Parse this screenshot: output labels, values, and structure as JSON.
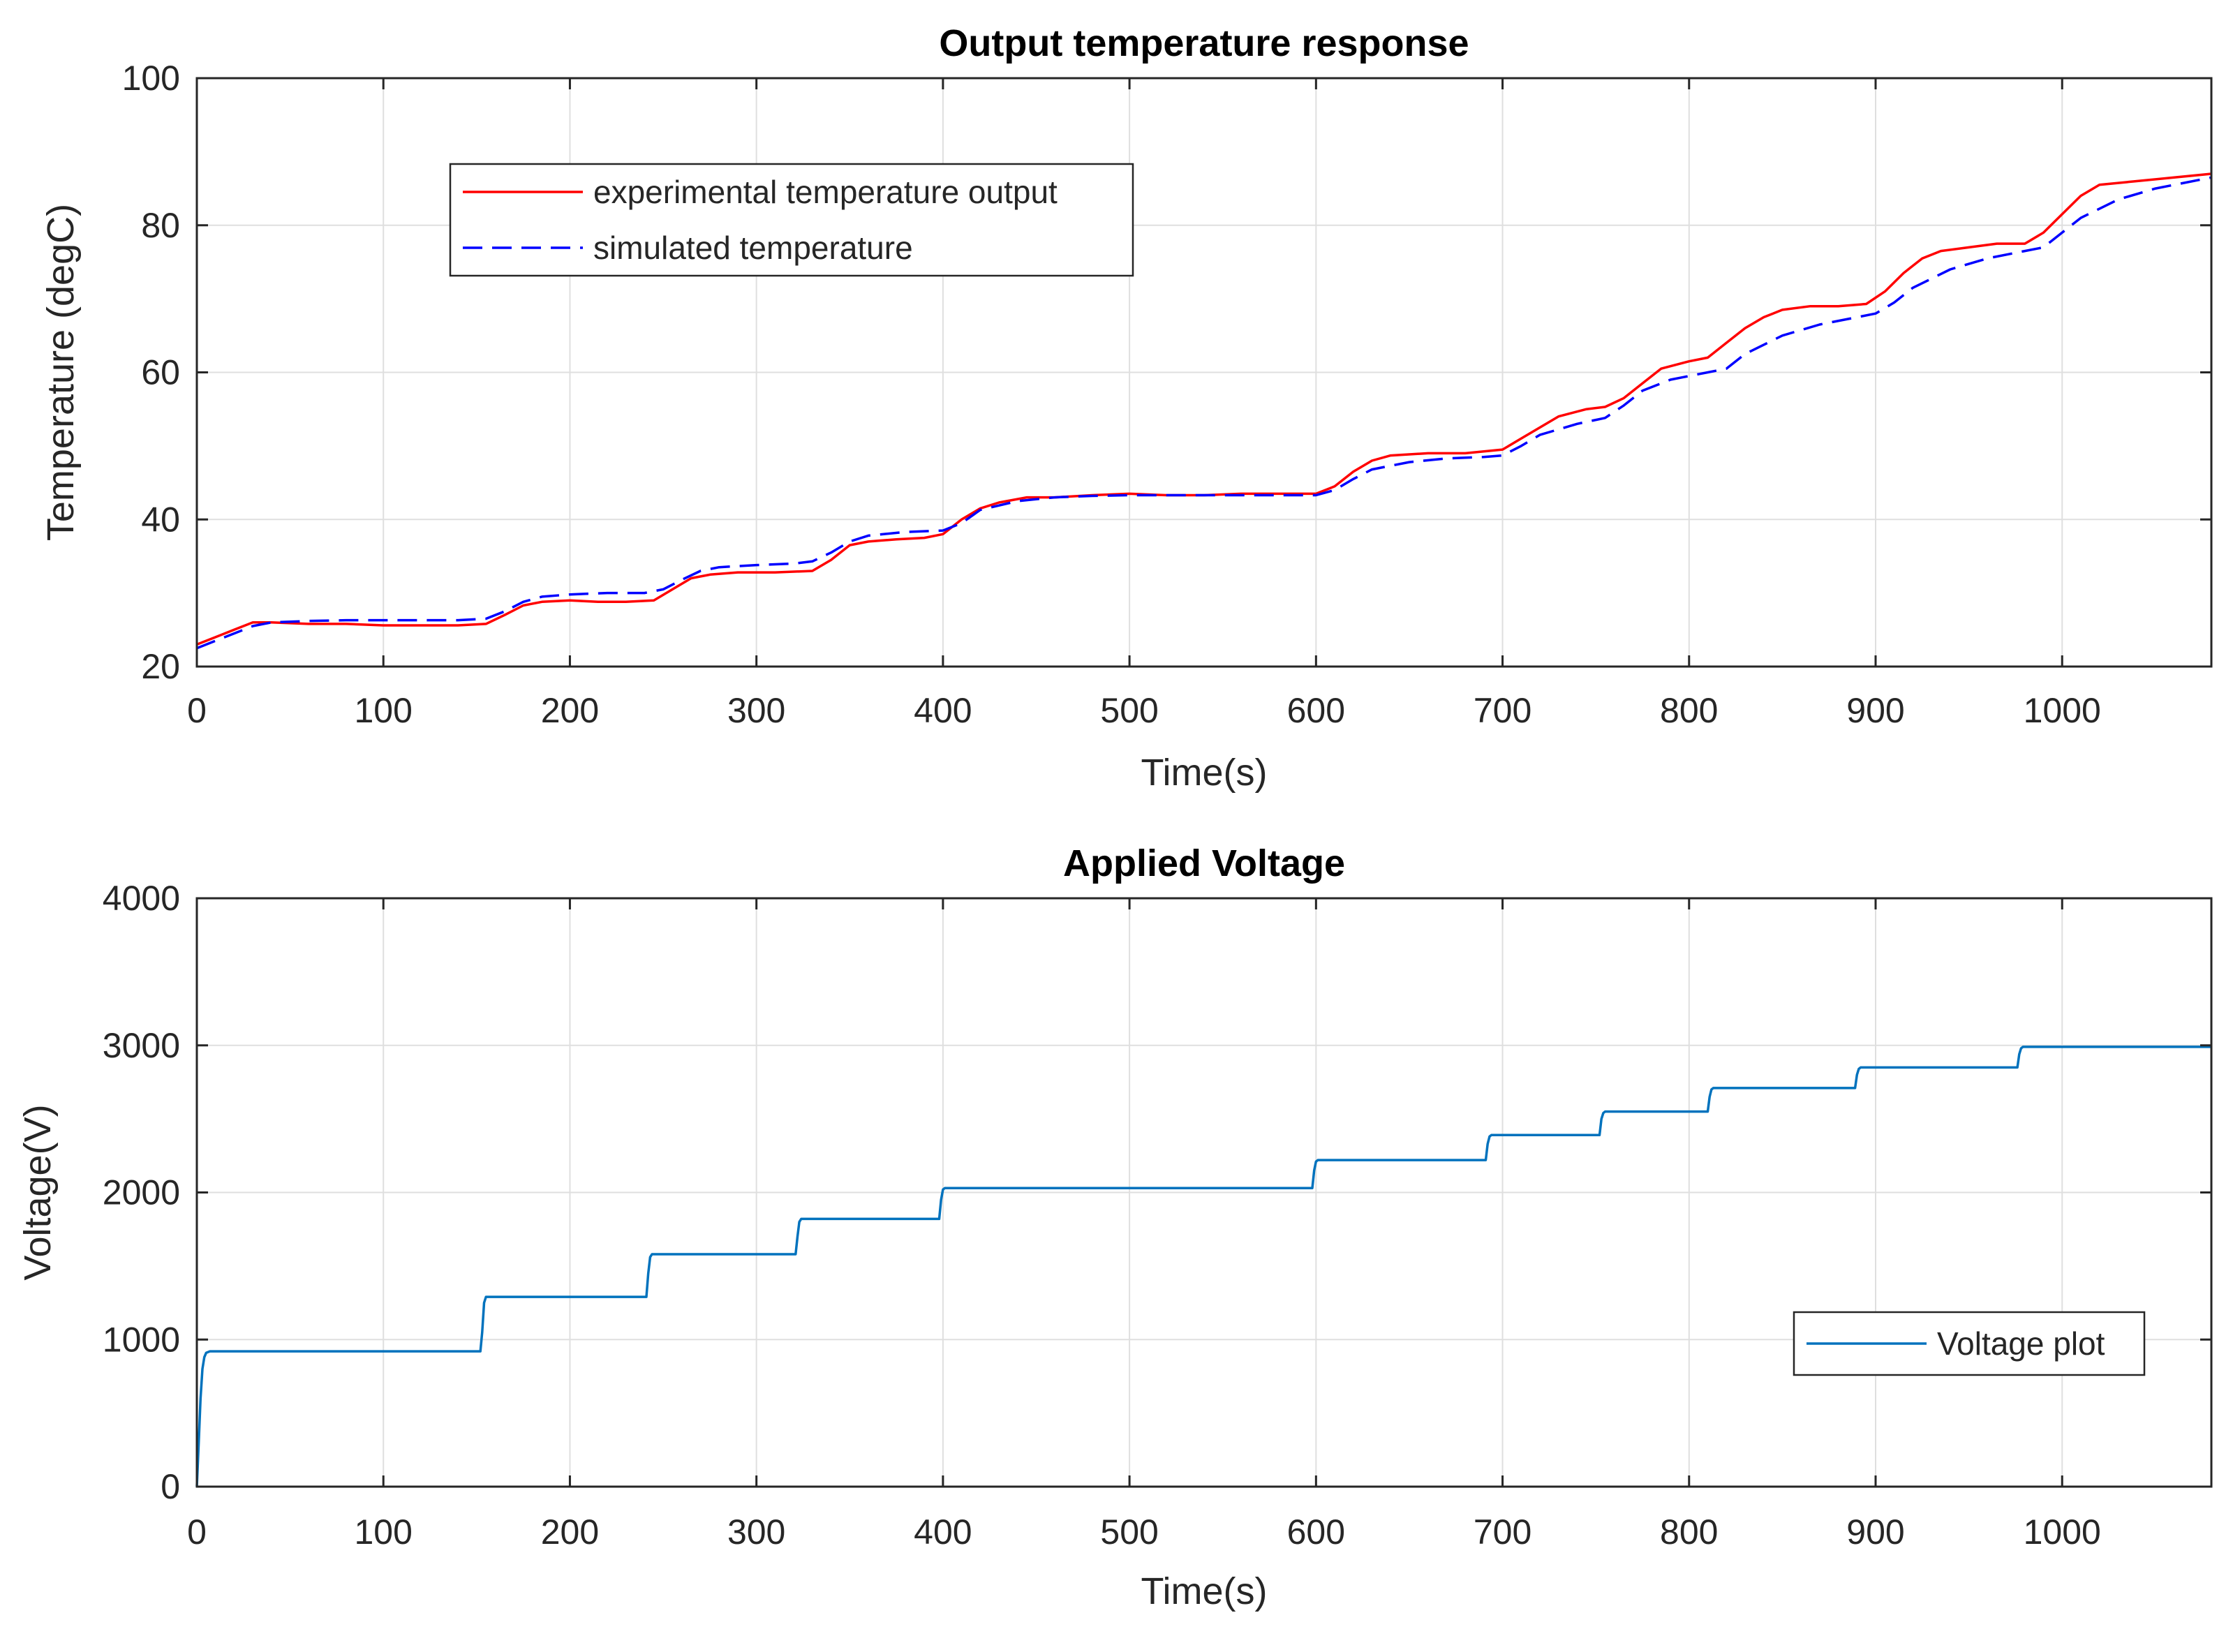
{
  "chart_data": [
    {
      "type": "line",
      "title": "Output temperature response",
      "xlabel": "Time(s)",
      "ylabel": "Temperature (degC)",
      "xlim": [
        0,
        1080
      ],
      "ylim": [
        20,
        100
      ],
      "xticks": [
        "0",
        "100",
        "200",
        "300",
        "400",
        "500",
        "600",
        "700",
        "800",
        "900",
        "1000"
      ],
      "yticks": [
        "20",
        "40",
        "60",
        "80",
        "100"
      ],
      "grid": true,
      "legend_position": "top-left",
      "series": [
        {
          "name": "experimental temperature output",
          "color": "#ff0000",
          "style": "solid",
          "x": [
            0,
            10,
            20,
            30,
            40,
            60,
            80,
            100,
            120,
            140,
            155,
            165,
            175,
            185,
            200,
            215,
            230,
            245,
            255,
            265,
            275,
            290,
            310,
            330,
            340,
            350,
            360,
            375,
            390,
            400,
            410,
            420,
            430,
            445,
            460,
            480,
            500,
            520,
            540,
            560,
            580,
            600,
            610,
            620,
            630,
            640,
            660,
            680,
            700,
            710,
            720,
            730,
            745,
            755,
            765,
            775,
            785,
            800,
            810,
            820,
            830,
            840,
            850,
            865,
            880,
            895,
            905,
            915,
            925,
            935,
            950,
            965,
            980,
            990,
            1000,
            1010,
            1020,
            1040,
            1060,
            1080
          ],
          "y": [
            23,
            24,
            25,
            26,
            26,
            25.8,
            25.8,
            25.6,
            25.6,
            25.6,
            25.8,
            27,
            28.3,
            28.8,
            29,
            28.8,
            28.8,
            29,
            30.5,
            32,
            32.5,
            32.8,
            32.8,
            33,
            34.5,
            36.5,
            37,
            37.3,
            37.5,
            38,
            40,
            41.5,
            42.3,
            43,
            43,
            43.3,
            43.5,
            43.3,
            43.3,
            43.5,
            43.5,
            43.5,
            44.5,
            46.5,
            48,
            48.7,
            49,
            49,
            49.5,
            51,
            52.5,
            54,
            55,
            55.3,
            56.5,
            58.5,
            60.5,
            61.5,
            62,
            64,
            66,
            67.5,
            68.5,
            69,
            69,
            69.3,
            71,
            73.5,
            75.5,
            76.5,
            77,
            77.5,
            77.5,
            79,
            81.5,
            84,
            85.5,
            86,
            86.5,
            87
          ]
        },
        {
          "name": "simulated temperature",
          "color": "#0000ff",
          "style": "dashed",
          "x": [
            0,
            10,
            20,
            30,
            40,
            60,
            80,
            100,
            120,
            140,
            155,
            165,
            175,
            185,
            200,
            220,
            240,
            250,
            260,
            270,
            280,
            300,
            320,
            330,
            340,
            350,
            360,
            380,
            400,
            410,
            420,
            440,
            460,
            480,
            500,
            520,
            540,
            560,
            580,
            600,
            610,
            620,
            630,
            650,
            670,
            690,
            700,
            710,
            720,
            740,
            755,
            765,
            775,
            790,
            810,
            820,
            830,
            850,
            870,
            890,
            900,
            910,
            920,
            940,
            960,
            980,
            990,
            1000,
            1010,
            1030,
            1050,
            1080
          ],
          "y": [
            22.5,
            23.5,
            24.5,
            25.5,
            26,
            26.2,
            26.3,
            26.3,
            26.3,
            26.3,
            26.5,
            27.5,
            28.8,
            29.5,
            29.8,
            30,
            30,
            30.5,
            31.8,
            33,
            33.5,
            33.8,
            34,
            34.3,
            35.5,
            37,
            37.8,
            38.3,
            38.5,
            39.5,
            41.3,
            42.5,
            43,
            43.2,
            43.3,
            43.3,
            43.3,
            43.3,
            43.3,
            43.3,
            44,
            45.5,
            46.8,
            47.8,
            48.3,
            48.5,
            48.7,
            50,
            51.5,
            53,
            53.8,
            55.5,
            57.5,
            59,
            60,
            60.5,
            62.5,
            65,
            66.5,
            67.5,
            68,
            69.5,
            71.5,
            74,
            75.5,
            76.5,
            77,
            79,
            81,
            83.5,
            85,
            86.5
          ]
        }
      ]
    },
    {
      "type": "line",
      "title": "Applied Voltage",
      "xlabel": "Time(s)",
      "ylabel": "Voltage(V)",
      "xlim": [
        0,
        1080
      ],
      "ylim": [
        0,
        4000
      ],
      "xticks": [
        "0",
        "100",
        "200",
        "300",
        "400",
        "500",
        "600",
        "700",
        "800",
        "900",
        "1000"
      ],
      "yticks": [
        "0",
        "1000",
        "2000",
        "3000",
        "4000"
      ],
      "grid": true,
      "legend_position": "bottom-right",
      "series": [
        {
          "name": "Voltage plot",
          "color": "#0072bd",
          "style": "solid",
          "x": [
            0,
            1,
            2,
            3,
            4,
            5,
            7,
            10,
            152,
            153,
            154,
            155,
            241,
            242,
            243,
            244,
            321,
            322,
            323,
            324,
            398,
            399,
            400,
            401,
            598,
            599,
            600,
            601,
            691,
            692,
            693,
            694,
            752,
            753,
            754,
            755,
            810,
            811,
            812,
            813,
            889,
            890,
            891,
            892,
            976,
            977,
            978,
            979,
            1080
          ],
          "y": [
            0,
            300,
            600,
            800,
            880,
            910,
            920,
            920,
            920,
            1050,
            1250,
            1290,
            1290,
            1450,
            1560,
            1580,
            1580,
            1700,
            1800,
            1820,
            1820,
            1950,
            2020,
            2030,
            2030,
            2150,
            2210,
            2220,
            2220,
            2330,
            2380,
            2390,
            2390,
            2500,
            2540,
            2550,
            2550,
            2650,
            2700,
            2710,
            2710,
            2800,
            2840,
            2850,
            2850,
            2940,
            2980,
            2990,
            2990
          ]
        }
      ]
    }
  ]
}
